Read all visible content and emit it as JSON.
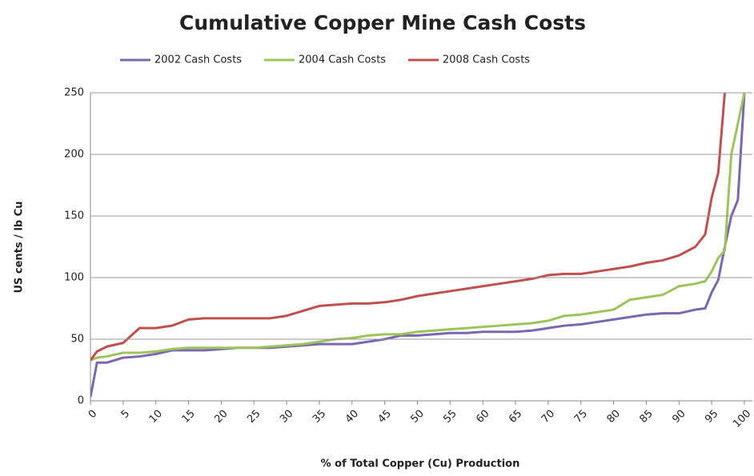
{
  "chart_data": {
    "type": "line",
    "title": "Cumulative Copper Mine Cash Costs",
    "x_label": "% of Total Copper (Cu) Production",
    "y_label": "US cents / lb Cu",
    "x": [
      0,
      1,
      2.5,
      5,
      7.5,
      10,
      12.5,
      15,
      17.5,
      20,
      22.5,
      25,
      27.5,
      30,
      32.5,
      35,
      37.5,
      40,
      42.5,
      45,
      47.5,
      50,
      52.5,
      55,
      57.5,
      60,
      62.5,
      65,
      67.5,
      70,
      72.5,
      75,
      77.5,
      80,
      82.5,
      85,
      87.5,
      90,
      92.5,
      94,
      95,
      96,
      97,
      98,
      99,
      100
    ],
    "series": [
      {
        "name": "2002 Cash Costs",
        "color": "#7b66b0",
        "values": [
          3,
          31,
          31,
          35,
          36,
          38,
          41,
          41,
          41,
          42,
          43,
          43,
          43,
          44,
          45,
          46,
          46,
          46,
          48,
          50,
          53,
          53,
          54,
          55,
          55,
          56,
          56,
          56,
          57,
          59,
          61,
          62,
          64,
          66,
          68,
          70,
          71,
          71,
          74,
          75,
          88,
          98,
          125,
          150,
          163,
          250
        ]
      },
      {
        "name": "2004 Cash Costs",
        "color": "#9bc55a",
        "values": [
          33,
          35,
          36,
          39,
          39,
          40,
          42,
          43,
          43,
          43,
          43,
          43,
          44,
          45,
          46,
          48,
          50,
          51,
          53,
          54,
          54,
          56,
          57,
          58,
          59,
          60,
          61,
          62,
          63,
          65,
          69,
          70,
          72,
          74,
          82,
          84,
          86,
          93,
          95,
          97,
          105,
          116,
          122,
          200,
          225,
          250
        ]
      },
      {
        "name": "2008 Cash Costs",
        "color": "#c0504d",
        "values": [
          33,
          40,
          44,
          47,
          59,
          59,
          61,
          66,
          67,
          67,
          67,
          67,
          67,
          69,
          73,
          77,
          78,
          79,
          79,
          80,
          82,
          85,
          87,
          89,
          91,
          93,
          95,
          97,
          99,
          102,
          103,
          103,
          105,
          107,
          109,
          112,
          114,
          118,
          125,
          135,
          165,
          185,
          250,
          null,
          null,
          null
        ]
      }
    ],
    "xlim": [
      0,
      100
    ],
    "xticks": [
      0,
      5,
      10,
      15,
      20,
      25,
      30,
      35,
      40,
      45,
      50,
      55,
      60,
      65,
      70,
      75,
      80,
      85,
      90,
      95,
      100
    ],
    "ylim": [
      0,
      250
    ],
    "yticks": [
      0,
      50,
      100,
      150,
      200,
      250
    ],
    "grid": true,
    "legend": "top"
  }
}
